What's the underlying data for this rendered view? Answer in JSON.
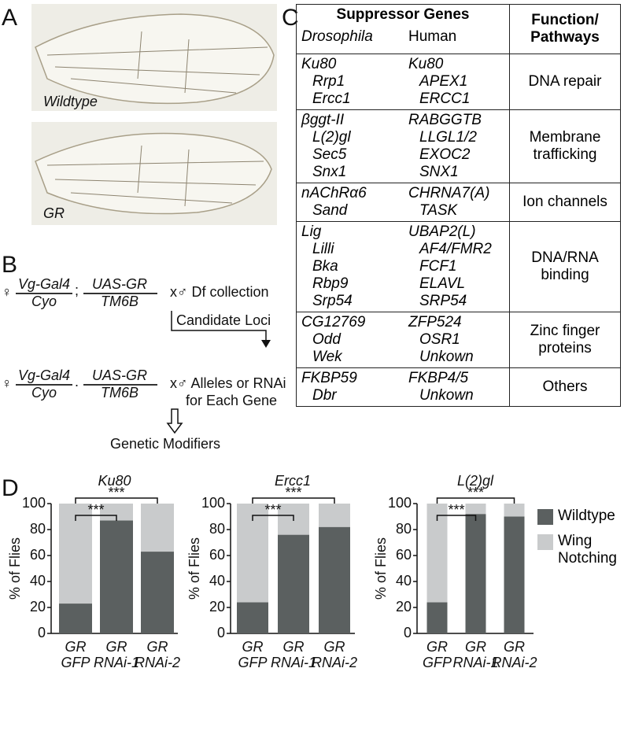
{
  "panel_a": {
    "label": "A",
    "wing_labels": [
      "Wildtype",
      "GR"
    ]
  },
  "panel_b": {
    "label": "B",
    "crosses": [
      {
        "female": "♀",
        "g1_top": "Vg-Gal4",
        "g1_bottom": "Cyo",
        "sep": ";",
        "g2_top": "UAS-GR",
        "g2_bottom": "TM6B",
        "partner": [
          "x♂ Df collection"
        ]
      },
      {
        "female": "♀",
        "g1_top": "Vg-Gal4",
        "g1_bottom": "Cyo",
        "sep": ".",
        "g2_top": "UAS-GR",
        "g2_bottom": "TM6B",
        "partner": [
          "x♂ Alleles or RNAi",
          "for Each Gene"
        ]
      }
    ],
    "step": "Candidate Loci",
    "result": "Genetic Modifiers"
  },
  "panel_c": {
    "label": "C",
    "header": {
      "genes": "Suppressor Genes",
      "drosophila": "Drosophila",
      "human": "Human",
      "function": "Function/ Pathways"
    },
    "groups": [
      {
        "drosophila": [
          "Ku80",
          "Rrp1",
          "Ercc1"
        ],
        "human": [
          "Ku80",
          "APEX1",
          "ERCC1"
        ],
        "function": "DNA repair"
      },
      {
        "drosophila": [
          "βggt-II",
          "L(2)gl",
          "Sec5",
          "Snx1"
        ],
        "human": [
          "RABGGTB",
          "LLGL1/2",
          "EXOC2",
          "SNX1"
        ],
        "function": "Membrane trafficking"
      },
      {
        "drosophila": [
          "nAChRα6",
          "Sand"
        ],
        "human": [
          "CHRNA7(A)",
          "TASK"
        ],
        "function": "Ion channels"
      },
      {
        "drosophila": [
          "Lig",
          "Lilli",
          "Bka",
          "Rbp9",
          "Srp54"
        ],
        "human": [
          "UBAP2(L)",
          "AF4/FMR2",
          "FCF1",
          "ELAVL",
          "SRP54"
        ],
        "function": "DNA/RNA binding"
      },
      {
        "drosophila": [
          "CG12769",
          "Odd",
          "Wek"
        ],
        "human": [
          "ZFP524",
          "OSR1",
          "Unkown"
        ],
        "function": "Zinc finger proteins"
      },
      {
        "drosophila": [
          "FKBP59",
          "Dbr"
        ],
        "human": [
          "FKBP4/5",
          "Unkown"
        ],
        "function": "Others"
      }
    ]
  },
  "panel_d_label": "D",
  "chart_data": [
    {
      "type": "bar",
      "stacked": true,
      "title": "Ku80",
      "y_label": "% of Flies",
      "categories": [
        [
          "GR",
          "GFP"
        ],
        [
          "GR",
          "RNAi-1"
        ],
        [
          "GR",
          "RNAi-2"
        ]
      ],
      "series": [
        {
          "color": "#5b6060",
          "values": [
            23,
            87,
            63
          ]
        },
        {
          "color": "#c9cbcc",
          "values": [
            77,
            13,
            37
          ]
        }
      ],
      "ylim": [
        0,
        100
      ],
      "yticks": [
        0,
        20,
        40,
        60,
        80,
        100
      ],
      "annotations": [
        {
          "text": "***",
          "from": 0,
          "to": 1
        },
        {
          "text": "***",
          "from": 0,
          "to": 2
        }
      ]
    },
    {
      "type": "bar",
      "stacked": true,
      "title": "Ercc1",
      "y_label": "% of Flies",
      "categories": [
        [
          "GR",
          "GFP"
        ],
        [
          "GR",
          "RNAi-1"
        ],
        [
          "GR",
          "RNAi-2"
        ]
      ],
      "series": [
        {
          "color": "#5b6060",
          "values": [
            24,
            76,
            82
          ]
        },
        {
          "color": "#c9cbcc",
          "values": [
            76,
            24,
            18
          ]
        }
      ],
      "ylim": [
        0,
        100
      ],
      "yticks": [
        0,
        20,
        40,
        60,
        80,
        100
      ],
      "annotations": [
        {
          "text": "***",
          "from": 0,
          "to": 1
        },
        {
          "text": "***",
          "from": 0,
          "to": 2
        }
      ]
    },
    {
      "type": "bar",
      "stacked": true,
      "title": "L(2)gl",
      "y_label": "% of Flies",
      "categories": [
        [
          "GR",
          "GFP"
        ],
        [
          "GR",
          "RNAi-1"
        ],
        [
          "GR",
          "RNAi-2"
        ]
      ],
      "series": [
        {
          "name": "Wildtype",
          "color": "#5b6060",
          "values": [
            24,
            92,
            90
          ]
        },
        {
          "name": "Wing Notching",
          "color": "#c9cbcc",
          "values": [
            76,
            8,
            10
          ]
        }
      ],
      "ylim": [
        0,
        100
      ],
      "yticks": [
        0,
        20,
        40,
        60,
        80,
        100
      ],
      "legend": "right",
      "annotations": [
        {
          "text": "***",
          "from": 0,
          "to": 1
        },
        {
          "text": "***",
          "from": 0,
          "to": 2
        }
      ]
    }
  ]
}
